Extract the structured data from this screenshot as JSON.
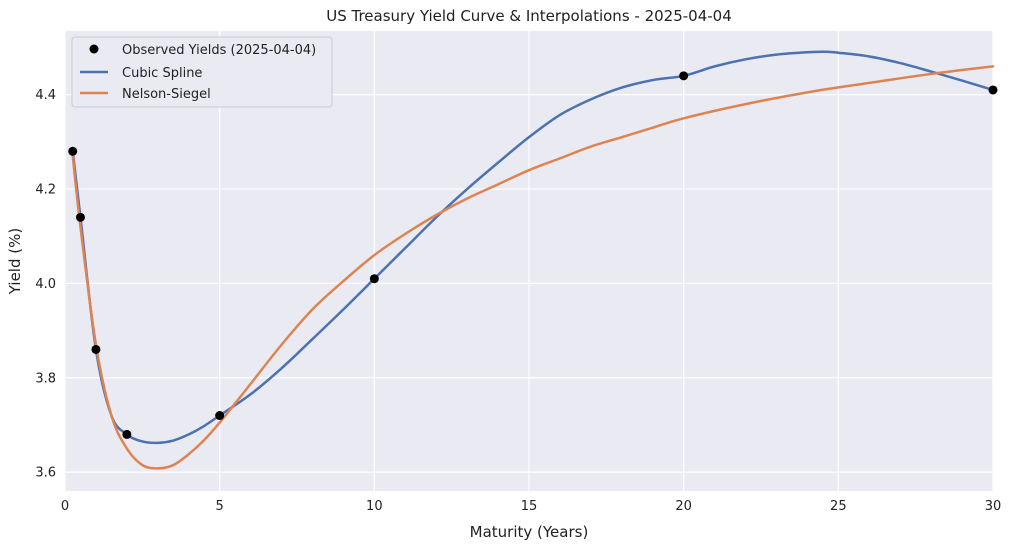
{
  "chart_data": {
    "type": "line",
    "title": "US Treasury Yield Curve & Interpolations - 2025-04-04",
    "xlabel": "Maturity (Years)",
    "ylabel": "Yield (%)",
    "xlim": [
      0,
      30
    ],
    "ylim": [
      3.56,
      4.535
    ],
    "xticks": [
      0,
      5,
      10,
      15,
      20,
      25,
      30
    ],
    "yticks": [
      3.6,
      3.8,
      4.0,
      4.2,
      4.4
    ],
    "grid": true,
    "legend_position": "top-left",
    "observed": {
      "name": "Observed Yields (2025-04-04)",
      "color": "#000000",
      "x": [
        0.25,
        0.5,
        1,
        2,
        5,
        10,
        20,
        30
      ],
      "y": [
        4.28,
        4.14,
        3.86,
        3.68,
        3.72,
        4.01,
        4.44,
        4.41
      ]
    },
    "series": [
      {
        "name": "Cubic Spline",
        "color": "#4c72b0",
        "x": [
          0.25,
          0.5,
          1,
          1.5,
          2,
          2.5,
          3,
          3.5,
          4,
          4.5,
          5,
          6,
          7,
          8,
          9,
          10,
          11,
          12,
          13,
          14,
          15,
          16,
          17,
          18,
          19,
          20,
          21,
          22,
          23,
          24,
          24.6,
          25,
          26,
          27,
          28,
          29,
          30
        ],
        "y": [
          4.28,
          4.14,
          3.86,
          3.72,
          3.68,
          3.665,
          3.662,
          3.667,
          3.68,
          3.698,
          3.72,
          3.765,
          3.82,
          3.882,
          3.945,
          4.01,
          4.075,
          4.14,
          4.2,
          4.256,
          4.31,
          4.357,
          4.39,
          4.415,
          4.431,
          4.44,
          4.46,
          4.475,
          4.485,
          4.49,
          4.491,
          4.489,
          4.481,
          4.467,
          4.449,
          4.43,
          4.41
        ]
      },
      {
        "name": "Nelson-Siegel",
        "color": "#dd8452",
        "x": [
          0.25,
          0.5,
          1,
          1.5,
          2,
          2.5,
          3,
          3.5,
          4,
          4.5,
          5,
          6,
          7,
          8,
          9,
          10,
          11,
          12,
          13,
          14,
          15,
          16,
          17,
          18,
          19,
          20,
          22,
          24,
          26,
          28,
          30
        ],
        "y": [
          4.27,
          4.12,
          3.87,
          3.72,
          3.65,
          3.615,
          3.608,
          3.615,
          3.638,
          3.668,
          3.705,
          3.787,
          3.87,
          3.945,
          4.005,
          4.06,
          4.105,
          4.145,
          4.18,
          4.21,
          4.24,
          4.265,
          4.29,
          4.31,
          4.33,
          4.35,
          4.38,
          4.405,
          4.425,
          4.444,
          4.46
        ]
      }
    ]
  }
}
